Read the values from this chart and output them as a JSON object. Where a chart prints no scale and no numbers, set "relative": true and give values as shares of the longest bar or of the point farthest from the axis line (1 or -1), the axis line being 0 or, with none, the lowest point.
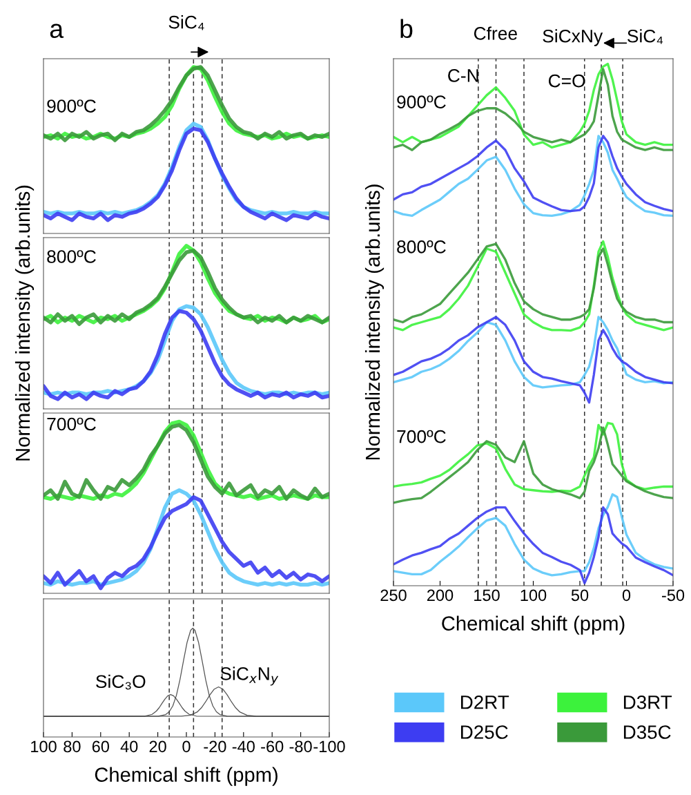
{
  "chart_data": [
    {
      "type": "line",
      "relative": true,
      "title": "a",
      "xlim": [
        100,
        -100
      ],
      "tick_labels": false,
      "x": [
        100,
        95,
        90,
        85,
        80,
        75,
        70,
        65,
        60,
        55,
        50,
        45,
        40,
        35,
        30,
        25,
        20,
        15,
        10,
        5,
        0,
        -5,
        -10,
        -15,
        -20,
        -25,
        -30,
        -35,
        -40,
        -45,
        -50,
        -55,
        -60,
        -65,
        -70,
        -75,
        -80,
        -85,
        -90,
        -95,
        -100
      ],
      "series": [
        {
          "color": "#5bc8fa",
          "values": [
            0.13,
            0.12,
            0.13,
            0.12,
            0.12,
            0.13,
            0.12,
            0.12,
            0.13,
            0.12,
            0.13,
            0.12,
            0.13,
            0.14,
            0.16,
            0.19,
            0.23,
            0.3,
            0.4,
            0.52,
            0.62,
            0.66,
            0.64,
            0.56,
            0.45,
            0.35,
            0.27,
            0.2,
            0.16,
            0.14,
            0.13,
            0.12,
            0.13,
            0.12,
            0.12,
            0.13,
            0.12,
            0.12,
            0.13,
            0.12,
            0.12
          ]
        },
        {
          "color": "#3d3df2",
          "values": [
            0.11,
            0.09,
            0.12,
            0.1,
            0.08,
            0.12,
            0.1,
            0.09,
            0.12,
            0.08,
            0.11,
            0.1,
            0.12,
            0.13,
            0.15,
            0.18,
            0.22,
            0.29,
            0.38,
            0.5,
            0.6,
            0.63,
            0.62,
            0.55,
            0.45,
            0.36,
            0.28,
            0.21,
            0.16,
            0.13,
            0.11,
            0.09,
            0.12,
            0.1,
            0.08,
            0.11,
            0.1,
            0.09,
            0.12,
            0.1,
            0.09
          ]
        },
        {
          "color": "#3cf23c",
          "values": [
            0.58,
            0.59,
            0.57,
            0.6,
            0.58,
            0.59,
            0.57,
            0.58,
            0.6,
            0.58,
            0.57,
            0.59,
            0.58,
            0.6,
            0.61,
            0.63,
            0.66,
            0.7,
            0.77,
            0.87,
            0.95,
            1.0,
            0.99,
            0.92,
            0.82,
            0.73,
            0.66,
            0.62,
            0.6,
            0.59,
            0.58,
            0.59,
            0.57,
            0.58,
            0.6,
            0.58,
            0.59,
            0.57,
            0.58,
            0.59,
            0.58
          ]
        },
        {
          "color": "#3a9a3a",
          "values": [
            0.59,
            0.57,
            0.6,
            0.56,
            0.6,
            0.58,
            0.61,
            0.57,
            0.59,
            0.6,
            0.56,
            0.6,
            0.58,
            0.61,
            0.62,
            0.65,
            0.69,
            0.74,
            0.8,
            0.88,
            0.95,
            0.99,
            1.0,
            0.95,
            0.86,
            0.77,
            0.69,
            0.64,
            0.61,
            0.6,
            0.57,
            0.6,
            0.58,
            0.61,
            0.57,
            0.59,
            0.6,
            0.57,
            0.59,
            0.58,
            0.6
          ]
        }
      ],
      "ref_lines": [
        {
          "axis": "x",
          "value": 12,
          "color": "#333333",
          "line_style": "dashed"
        },
        {
          "axis": "x",
          "value": -5,
          "color": "#333333",
          "line_style": "dashed"
        },
        {
          "axis": "x",
          "value": -11,
          "color": "#333333",
          "line_style": "dashed"
        },
        {
          "axis": "x",
          "value": -25,
          "color": "#333333",
          "line_style": "dashed"
        }
      ],
      "annotations": [
        "SiC₄",
        "900ºC"
      ]
    },
    {
      "type": "line",
      "relative": true,
      "ylabel": "Normalized intensity (arb.units)",
      "xlim": [
        100,
        -100
      ],
      "tick_labels": false,
      "x": [
        100,
        95,
        90,
        85,
        80,
        75,
        70,
        65,
        60,
        55,
        50,
        45,
        40,
        35,
        30,
        25,
        20,
        15,
        10,
        5,
        0,
        -5,
        -10,
        -15,
        -20,
        -25,
        -30,
        -35,
        -40,
        -45,
        -50,
        -55,
        -60,
        -65,
        -70,
        -75,
        -80,
        -85,
        -90,
        -95,
        -100
      ],
      "series": [
        {
          "color": "#5bc8fa",
          "values": [
            0.1,
            0.09,
            0.1,
            0.09,
            0.1,
            0.1,
            0.09,
            0.1,
            0.1,
            0.11,
            0.1,
            0.11,
            0.12,
            0.14,
            0.17,
            0.22,
            0.3,
            0.42,
            0.54,
            0.61,
            0.63,
            0.62,
            0.58,
            0.5,
            0.4,
            0.3,
            0.22,
            0.16,
            0.13,
            0.11,
            0.1,
            0.09,
            0.1,
            0.1,
            0.09,
            0.1,
            0.09,
            0.1,
            0.1,
            0.09,
            0.1
          ]
        },
        {
          "color": "#3d3df2",
          "values": [
            0.14,
            0.08,
            0.06,
            0.1,
            0.07,
            0.09,
            0.06,
            0.1,
            0.08,
            0.07,
            0.11,
            0.09,
            0.12,
            0.13,
            0.17,
            0.23,
            0.33,
            0.46,
            0.56,
            0.6,
            0.59,
            0.55,
            0.48,
            0.38,
            0.28,
            0.2,
            0.15,
            0.12,
            0.1,
            0.08,
            0.1,
            0.07,
            0.09,
            0.08,
            0.1,
            0.07,
            0.09,
            0.08,
            0.1,
            0.07,
            0.08
          ]
        },
        {
          "color": "#3cf23c",
          "values": [
            0.55,
            0.57,
            0.53,
            0.56,
            0.54,
            0.57,
            0.55,
            0.53,
            0.56,
            0.55,
            0.57,
            0.54,
            0.56,
            0.58,
            0.6,
            0.63,
            0.67,
            0.74,
            0.84,
            0.95,
            1.0,
            0.97,
            0.9,
            0.8,
            0.71,
            0.65,
            0.6,
            0.58,
            0.56,
            0.55,
            0.57,
            0.54,
            0.56,
            0.55,
            0.53,
            0.56,
            0.54,
            0.55,
            0.57,
            0.53,
            0.55
          ]
        },
        {
          "color": "#3a9a3a",
          "values": [
            0.56,
            0.53,
            0.58,
            0.54,
            0.57,
            0.52,
            0.56,
            0.58,
            0.53,
            0.57,
            0.54,
            0.58,
            0.55,
            0.59,
            0.61,
            0.64,
            0.68,
            0.75,
            0.83,
            0.91,
            0.96,
            0.97,
            0.93,
            0.84,
            0.74,
            0.67,
            0.62,
            0.58,
            0.56,
            0.57,
            0.53,
            0.56,
            0.54,
            0.57,
            0.53,
            0.56,
            0.54,
            0.57,
            0.55,
            0.53,
            0.56
          ]
        }
      ],
      "ref_lines": [
        {
          "axis": "x",
          "value": 12,
          "color": "#333333",
          "line_style": "dashed"
        },
        {
          "axis": "x",
          "value": -5,
          "color": "#333333",
          "line_style": "dashed"
        },
        {
          "axis": "x",
          "value": -11,
          "color": "#333333",
          "line_style": "dashed"
        },
        {
          "axis": "x",
          "value": -25,
          "color": "#333333",
          "line_style": "dashed"
        }
      ],
      "annotations": [
        "800ºC"
      ]
    },
    {
      "type": "line",
      "relative": true,
      "xlim": [
        100,
        -100
      ],
      "tick_labels": false,
      "x": [
        100,
        95,
        90,
        85,
        80,
        75,
        70,
        65,
        60,
        55,
        50,
        45,
        40,
        35,
        30,
        25,
        20,
        15,
        10,
        5,
        0,
        -5,
        -10,
        -15,
        -20,
        -25,
        -30,
        -35,
        -40,
        -45,
        -50,
        -55,
        -60,
        -65,
        -70,
        -75,
        -80,
        -85,
        -90,
        -95,
        -100
      ],
      "series": [
        {
          "color": "#5bc8fa",
          "values": [
            0.06,
            0.05,
            0.07,
            0.06,
            0.05,
            0.06,
            0.06,
            0.07,
            0.05,
            0.06,
            0.07,
            0.08,
            0.1,
            0.13,
            0.18,
            0.26,
            0.38,
            0.5,
            0.58,
            0.6,
            0.58,
            0.54,
            0.46,
            0.36,
            0.26,
            0.18,
            0.12,
            0.09,
            0.07,
            0.06,
            0.05,
            0.06,
            0.05,
            0.06,
            0.05,
            0.06,
            0.05,
            0.05,
            0.06,
            0.05,
            0.06
          ]
        },
        {
          "color": "#3d3df2",
          "values": [
            0.1,
            0.06,
            0.12,
            0.05,
            0.09,
            0.13,
            0.07,
            0.1,
            0.03,
            0.09,
            0.12,
            0.1,
            0.14,
            0.16,
            0.2,
            0.27,
            0.36,
            0.44,
            0.48,
            0.5,
            0.52,
            0.56,
            0.54,
            0.46,
            0.38,
            0.3,
            0.24,
            0.2,
            0.16,
            0.18,
            0.12,
            0.15,
            0.1,
            0.13,
            0.09,
            0.12,
            0.08,
            0.11,
            0.1,
            0.07,
            0.1
          ]
        },
        {
          "color": "#3cf23c",
          "values": [
            0.56,
            0.55,
            0.57,
            0.56,
            0.55,
            0.57,
            0.56,
            0.55,
            0.57,
            0.56,
            0.58,
            0.57,
            0.6,
            0.64,
            0.7,
            0.78,
            0.86,
            0.94,
            0.99,
            1.0,
            0.98,
            0.92,
            0.82,
            0.72,
            0.64,
            0.6,
            0.58,
            0.57,
            0.56,
            0.57,
            0.55,
            0.56,
            0.57,
            0.55,
            0.56,
            0.57,
            0.56,
            0.55,
            0.57,
            0.56,
            0.56
          ]
        },
        {
          "color": "#3a9a3a",
          "values": [
            0.57,
            0.6,
            0.55,
            0.65,
            0.58,
            0.56,
            0.66,
            0.6,
            0.55,
            0.62,
            0.6,
            0.66,
            0.63,
            0.67,
            0.72,
            0.8,
            0.86,
            0.93,
            0.97,
            0.98,
            0.95,
            0.88,
            0.78,
            0.68,
            0.62,
            0.58,
            0.64,
            0.57,
            0.6,
            0.63,
            0.56,
            0.6,
            0.58,
            0.62,
            0.55,
            0.6,
            0.57,
            0.55,
            0.61,
            0.56,
            0.58
          ]
        }
      ],
      "ref_lines": [
        {
          "axis": "x",
          "value": 12,
          "color": "#333333",
          "line_style": "dashed"
        },
        {
          "axis": "x",
          "value": -5,
          "color": "#333333",
          "line_style": "dashed"
        },
        {
          "axis": "x",
          "value": -11,
          "color": "#333333",
          "line_style": "dashed"
        },
        {
          "axis": "x",
          "value": -25,
          "color": "#333333",
          "line_style": "dashed"
        }
      ],
      "annotations": [
        "700ºC"
      ]
    },
    {
      "type": "line",
      "relative": true,
      "xlabel": "Chemical shift (ppm)",
      "xlim": [
        100,
        -100
      ],
      "tick_labels": "x",
      "xticks": [
        100,
        80,
        60,
        40,
        20,
        0,
        -20,
        -40,
        -60,
        -80,
        -100
      ],
      "series": [
        {
          "color": "#404040",
          "x": [
            100,
            29,
            24,
            21,
            19,
            17,
            15,
            13,
            11,
            9,
            7,
            5,
            3,
            1,
            -2,
            -7,
            -100
          ],
          "values": [
            0.19,
            0.192,
            0.208,
            0.238,
            0.27,
            0.31,
            0.349,
            0.379,
            0.39,
            0.379,
            0.349,
            0.31,
            0.27,
            0.238,
            0.208,
            0.192,
            0.19
          ]
        },
        {
          "color": "#404040",
          "x": [
            100,
            19.5,
            14.5,
            12,
            9.5,
            7,
            4.5,
            2,
            -0.5,
            -3,
            -4.5,
            -6,
            -8.5,
            -11,
            -13.5,
            -16,
            -18.5,
            -21,
            -23.5,
            -28.5,
            -100
          ],
          "values": [
            0.19,
            0.192,
            0.206,
            0.232,
            0.286,
            0.382,
            0.526,
            0.702,
            0.87,
            0.981,
            1.0,
            0.981,
            0.87,
            0.702,
            0.526,
            0.382,
            0.286,
            0.232,
            0.206,
            0.192,
            0.19
          ]
        },
        {
          "color": "#404040",
          "x": [
            100,
            3.5,
            -2.5,
            -7.5,
            -10.5,
            -13.5,
            -16.5,
            -19.5,
            -22.5,
            -25.5,
            -28.5,
            -31.5,
            -34.5,
            -37.5,
            -42.5,
            -48.5,
            -100
          ],
          "values": [
            0.19,
            0.191,
            0.199,
            0.229,
            0.268,
            0.324,
            0.388,
            0.44,
            0.46,
            0.44,
            0.388,
            0.324,
            0.268,
            0.229,
            0.199,
            0.191,
            0.19
          ]
        }
      ],
      "ref_lines": [
        {
          "axis": "x",
          "value": 12,
          "color": "#333333",
          "line_style": "dashed"
        },
        {
          "axis": "x",
          "value": -5,
          "color": "#333333",
          "line_style": "dashed"
        },
        {
          "axis": "x",
          "value": -25,
          "color": "#333333",
          "line_style": "dashed"
        }
      ],
      "annotations": [
        "SiC₃O",
        "SiC$_{x}$N$_{y}$"
      ]
    },
    {
      "type": "line",
      "relative": true,
      "title": "b",
      "xlabel": "Chemical shift (ppm)",
      "ylabel": "Normalized intensity (arb.units)",
      "xlim": [
        250,
        -50
      ],
      "tick_labels": "x",
      "xticks": [
        250,
        200,
        150,
        100,
        50,
        0,
        -50
      ],
      "legend": "bottom",
      "x": [
        250,
        240,
        230,
        220,
        210,
        200,
        190,
        180,
        170,
        160,
        150,
        140,
        130,
        120,
        110,
        100,
        90,
        80,
        70,
        60,
        50,
        45,
        40,
        35,
        30,
        25,
        20,
        15,
        10,
        5,
        0,
        -10,
        -20,
        -30,
        -40,
        -50
      ],
      "series": [
        {
          "name": "D2RT",
          "color": "#5bc8fa",
          "values": [
            0.718,
            0.712,
            0.709,
            0.72,
            0.73,
            0.74,
            0.755,
            0.77,
            0.78,
            0.797,
            0.815,
            0.822,
            0.797,
            0.761,
            0.731,
            0.714,
            0.71,
            0.709,
            0.712,
            0.718,
            0.73,
            0.748,
            0.77,
            0.797,
            0.862,
            0.85,
            0.83,
            0.797,
            0.78,
            0.761,
            0.745,
            0.73,
            0.718,
            0.715,
            0.71,
            0.709
          ]
        },
        {
          "name": "D25C",
          "color": "#3d3df2",
          "values": [
            0.74,
            0.75,
            0.754,
            0.765,
            0.77,
            0.78,
            0.79,
            0.8,
            0.81,
            0.823,
            0.84,
            0.853,
            0.835,
            0.8,
            0.775,
            0.744,
            0.735,
            0.727,
            0.72,
            0.718,
            0.72,
            0.727,
            0.745,
            0.771,
            0.84,
            0.862,
            0.85,
            0.823,
            0.8,
            0.784,
            0.77,
            0.75,
            0.735,
            0.728,
            0.722,
            0.718
          ]
        },
        {
          "name": "D3RT",
          "color": "#3cf23c",
          "values": [
            0.86,
            0.85,
            0.86,
            0.85,
            0.855,
            0.86,
            0.87,
            0.88,
            0.9,
            0.92,
            0.94,
            0.955,
            0.935,
            0.91,
            0.865,
            0.845,
            0.85,
            0.84,
            0.845,
            0.85,
            0.87,
            0.885,
            0.91,
            0.95,
            0.98,
            0.995,
            1.0,
            0.97,
            0.93,
            0.89,
            0.865,
            0.85,
            0.845,
            0.85,
            0.845,
            0.845
          ]
        },
        {
          "name": "D35C",
          "color": "#3a9a3a",
          "values": [
            0.84,
            0.845,
            0.835,
            0.85,
            0.855,
            0.866,
            0.875,
            0.885,
            0.9,
            0.91,
            0.915,
            0.915,
            0.905,
            0.89,
            0.87,
            0.86,
            0.855,
            0.85,
            0.855,
            0.85,
            0.86,
            0.865,
            0.875,
            0.89,
            0.94,
            0.99,
            0.96,
            0.9,
            0.87,
            0.855,
            0.85,
            0.84,
            0.835,
            0.84,
            0.835,
            0.835
          ]
        },
        {
          "color": "#5bc8fa",
          "values": [
            0.39,
            0.395,
            0.4,
            0.41,
            0.415,
            0.423,
            0.435,
            0.45,
            0.469,
            0.485,
            0.505,
            0.5,
            0.47,
            0.43,
            0.4,
            0.384,
            0.38,
            0.382,
            0.384,
            0.385,
            0.39,
            0.404,
            0.42,
            0.456,
            0.515,
            0.505,
            0.49,
            0.47,
            0.455,
            0.43,
            0.405,
            0.395,
            0.39,
            0.392,
            0.388,
            0.39
          ]
        },
        {
          "color": "#3d3df2",
          "values": [
            0.404,
            0.41,
            0.42,
            0.43,
            0.435,
            0.443,
            0.455,
            0.47,
            0.48,
            0.495,
            0.505,
            0.515,
            0.5,
            0.47,
            0.43,
            0.41,
            0.4,
            0.397,
            0.392,
            0.388,
            0.384,
            0.37,
            0.351,
            0.404,
            0.47,
            0.49,
            0.475,
            0.455,
            0.44,
            0.43,
            0.425,
            0.41,
            0.4,
            0.395,
            0.39,
            0.388
          ]
        },
        {
          "color": "#3cf23c",
          "values": [
            0.495,
            0.49,
            0.5,
            0.505,
            0.51,
            0.515,
            0.53,
            0.55,
            0.575,
            0.61,
            0.646,
            0.64,
            0.6,
            0.56,
            0.52,
            0.505,
            0.495,
            0.49,
            0.49,
            0.489,
            0.495,
            0.505,
            0.52,
            0.575,
            0.64,
            0.66,
            0.63,
            0.59,
            0.561,
            0.535,
            0.52,
            0.505,
            0.5,
            0.495,
            0.49,
            0.495
          ]
        },
        {
          "color": "#3a9a3a",
          "values": [
            0.51,
            0.505,
            0.515,
            0.52,
            0.53,
            0.54,
            0.56,
            0.58,
            0.6,
            0.625,
            0.65,
            0.655,
            0.625,
            0.58,
            0.545,
            0.53,
            0.52,
            0.515,
            0.51,
            0.51,
            0.515,
            0.52,
            0.53,
            0.57,
            0.63,
            0.646,
            0.615,
            0.58,
            0.55,
            0.535,
            0.525,
            0.515,
            0.51,
            0.51,
            0.505,
            0.505
          ]
        },
        {
          "color": "#5bc8fa",
          "values": [
            0.028,
            0.025,
            0.022,
            0.022,
            0.03,
            0.046,
            0.06,
            0.075,
            0.093,
            0.11,
            0.125,
            0.13,
            0.115,
            0.08,
            0.05,
            0.033,
            0.025,
            0.02,
            0.022,
            0.026,
            0.028,
            0.028,
            0.045,
            0.072,
            0.11,
            0.135,
            0.151,
            0.175,
            0.17,
            0.132,
            0.098,
            0.063,
            0.05,
            0.041,
            0.036,
            0.033
          ]
        },
        {
          "color": "#3d3df2",
          "values": [
            0.041,
            0.05,
            0.058,
            0.063,
            0.07,
            0.076,
            0.09,
            0.1,
            0.115,
            0.13,
            0.142,
            0.15,
            0.15,
            0.124,
            0.1,
            0.08,
            0.063,
            0.055,
            0.046,
            0.04,
            0.03,
            0.005,
            0.025,
            0.055,
            0.093,
            0.15,
            0.137,
            0.1,
            0.09,
            0.081,
            0.075,
            0.054,
            0.045,
            0.037,
            0.03,
            0.02
          ]
        },
        {
          "color": "#3cf23c",
          "values": [
            0.19,
            0.193,
            0.195,
            0.198,
            0.205,
            0.211,
            0.222,
            0.238,
            0.252,
            0.269,
            0.273,
            0.263,
            0.224,
            0.194,
            0.185,
            0.183,
            0.181,
            0.18,
            0.182,
            0.181,
            0.19,
            0.211,
            0.23,
            0.246,
            0.308,
            0.29,
            0.312,
            0.31,
            0.29,
            0.233,
            0.203,
            0.19,
            0.185,
            0.188,
            0.19,
            0.19
          ]
        },
        {
          "color": "#3a9a3a",
          "values": [
            0.159,
            0.163,
            0.166,
            0.168,
            0.18,
            0.194,
            0.208,
            0.222,
            0.237,
            0.26,
            0.277,
            0.27,
            0.246,
            0.237,
            0.277,
            0.215,
            0.194,
            0.185,
            0.18,
            0.175,
            0.168,
            0.18,
            0.22,
            0.237,
            0.263,
            0.303,
            0.27,
            0.233,
            0.222,
            0.211,
            0.2,
            0.19,
            0.181,
            0.175,
            0.17,
            0.168
          ]
        }
      ],
      "ref_lines": [
        {
          "axis": "x",
          "value": 159,
          "color": "#333333",
          "line_style": "dashed"
        },
        {
          "axis": "x",
          "value": 140,
          "color": "#333333",
          "line_style": "dashed"
        },
        {
          "axis": "x",
          "value": 110,
          "color": "#333333",
          "line_style": "dashed"
        },
        {
          "axis": "x",
          "value": 45,
          "color": "#333333",
          "line_style": "dashed"
        },
        {
          "axis": "x",
          "value": 27,
          "color": "#333333",
          "line_style": "dashed"
        },
        {
          "axis": "x",
          "value": 4,
          "color": "#333333",
          "line_style": "dashed"
        }
      ],
      "annotations": [
        "900ºC",
        "800ºC",
        "700ºC",
        "C-N",
        "Cfree",
        "C=O",
        "SiCxNy",
        "SiC₄"
      ]
    }
  ]
}
